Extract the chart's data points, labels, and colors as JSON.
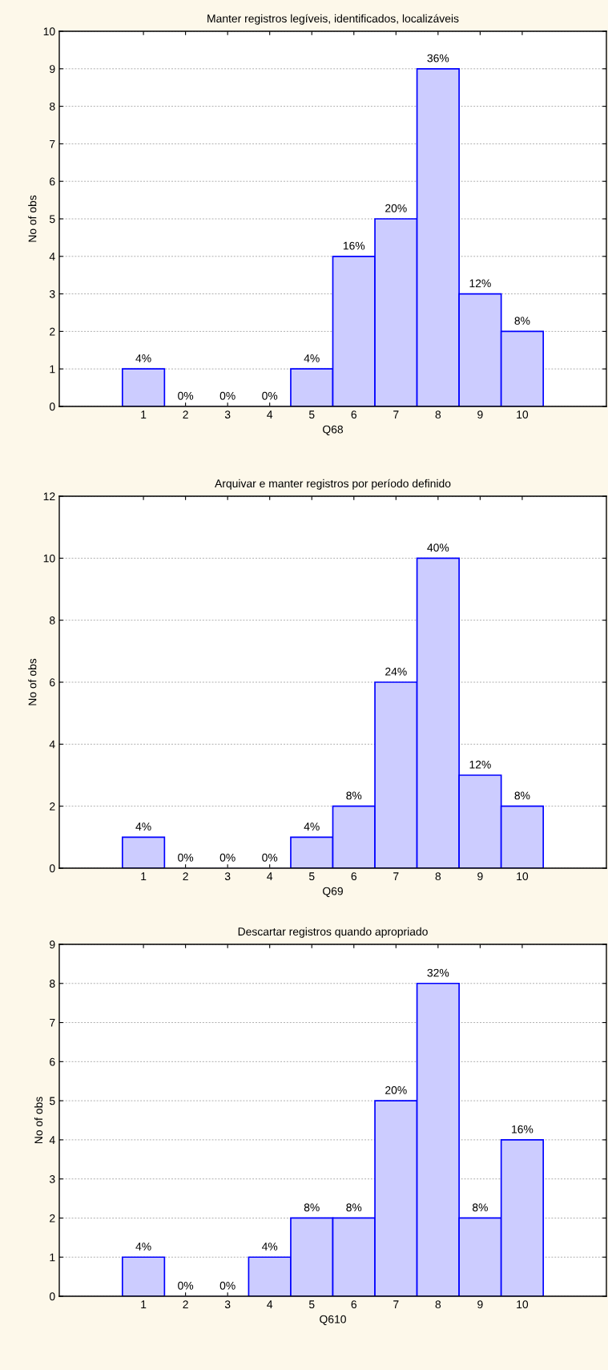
{
  "chart_data": [
    {
      "type": "bar",
      "title": "Manter registros legíveis, identificados, localizáveis",
      "xlabel": "Q68",
      "ylabel": "No of obs",
      "categories": [
        "1",
        "2",
        "3",
        "4",
        "5",
        "6",
        "7",
        "8",
        "9",
        "10"
      ],
      "values": [
        1,
        0,
        0,
        0,
        1,
        4,
        5,
        9,
        3,
        2
      ],
      "color": "#ccccff",
      "ylim": [
        0,
        10
      ],
      "yticks": [
        0,
        1,
        2,
        3,
        4,
        5,
        6,
        7,
        8,
        9,
        10
      ],
      "grid": "y",
      "annotations": [
        {
          "text": "4%",
          "x": "1",
          "y": 1
        },
        {
          "text": "0%",
          "x": "2",
          "y": 0
        },
        {
          "text": "0%",
          "x": "3",
          "y": 0
        },
        {
          "text": "0%",
          "x": "4",
          "y": 0
        },
        {
          "text": "4%",
          "x": "5",
          "y": 1
        },
        {
          "text": "16%",
          "x": "6",
          "y": 4
        },
        {
          "text": "20%",
          "x": "7",
          "y": 5
        },
        {
          "text": "36%",
          "x": "8",
          "y": 9
        },
        {
          "text": "12%",
          "x": "9",
          "y": 3
        },
        {
          "text": "8%",
          "x": "10",
          "y": 2
        }
      ]
    },
    {
      "type": "bar",
      "title": "Arquivar e manter registros por período definido",
      "xlabel": "Q69",
      "ylabel": "No of obs",
      "categories": [
        "1",
        "2",
        "3",
        "4",
        "5",
        "6",
        "7",
        "8",
        "9",
        "10"
      ],
      "values": [
        1,
        0,
        0,
        0,
        1,
        2,
        6,
        10,
        3,
        2
      ],
      "color": "#ccccff",
      "ylim": [
        0,
        12
      ],
      "yticks": [
        0,
        2,
        4,
        6,
        8,
        10,
        12
      ],
      "grid": "y",
      "annotations": [
        {
          "text": "4%",
          "x": "1",
          "y": 1
        },
        {
          "text": "0%",
          "x": "2",
          "y": 0
        },
        {
          "text": "0%",
          "x": "3",
          "y": 0
        },
        {
          "text": "0%",
          "x": "4",
          "y": 0
        },
        {
          "text": "4%",
          "x": "5",
          "y": 1
        },
        {
          "text": "8%",
          "x": "6",
          "y": 2
        },
        {
          "text": "24%",
          "x": "7",
          "y": 6
        },
        {
          "text": "40%",
          "x": "8",
          "y": 10
        },
        {
          "text": "12%",
          "x": "9",
          "y": 3
        },
        {
          "text": "8%",
          "x": "10",
          "y": 2
        }
      ]
    },
    {
      "type": "bar",
      "title": "Descartar registros quando apropriado",
      "xlabel": "Q610",
      "ylabel": "No of obs",
      "categories": [
        "1",
        "2",
        "3",
        "4",
        "5",
        "6",
        "7",
        "8",
        "9",
        "10"
      ],
      "values": [
        1,
        0,
        0,
        1,
        2,
        2,
        5,
        8,
        2,
        4
      ],
      "color": "#ccccff",
      "ylim": [
        0,
        9
      ],
      "yticks": [
        0,
        1,
        2,
        3,
        4,
        5,
        6,
        7,
        8,
        9
      ],
      "grid": "y",
      "annotations": [
        {
          "text": "4%",
          "x": "1",
          "y": 1
        },
        {
          "text": "0%",
          "x": "2",
          "y": 0
        },
        {
          "text": "0%",
          "x": "3",
          "y": 0
        },
        {
          "text": "4%",
          "x": "4",
          "y": 1
        },
        {
          "text": "8%",
          "x": "5",
          "y": 2
        },
        {
          "text": "8%",
          "x": "6",
          "y": 2
        },
        {
          "text": "20%",
          "x": "7",
          "y": 5
        },
        {
          "text": "32%",
          "x": "8",
          "y": 8
        },
        {
          "text": "8%",
          "x": "9",
          "y": 2
        },
        {
          "text": "16%",
          "x": "10",
          "y": 4
        }
      ]
    }
  ]
}
